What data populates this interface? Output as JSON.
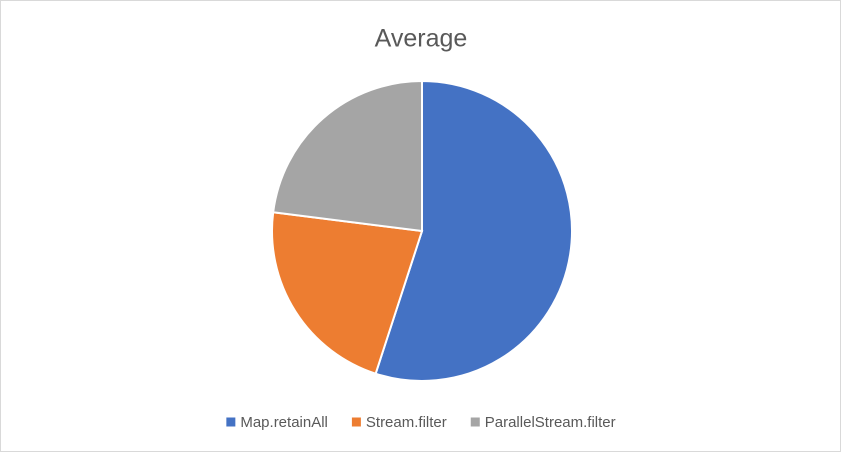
{
  "chart_data": {
    "type": "pie",
    "title": "Average",
    "categories": [
      "Map.retainAll",
      "Stream.filter",
      "ParallelStream.filter"
    ],
    "values": [
      55,
      22,
      23
    ],
    "colors": [
      "#4472c4",
      "#ed7d31",
      "#a5a5a5"
    ],
    "legend": "bottom"
  }
}
